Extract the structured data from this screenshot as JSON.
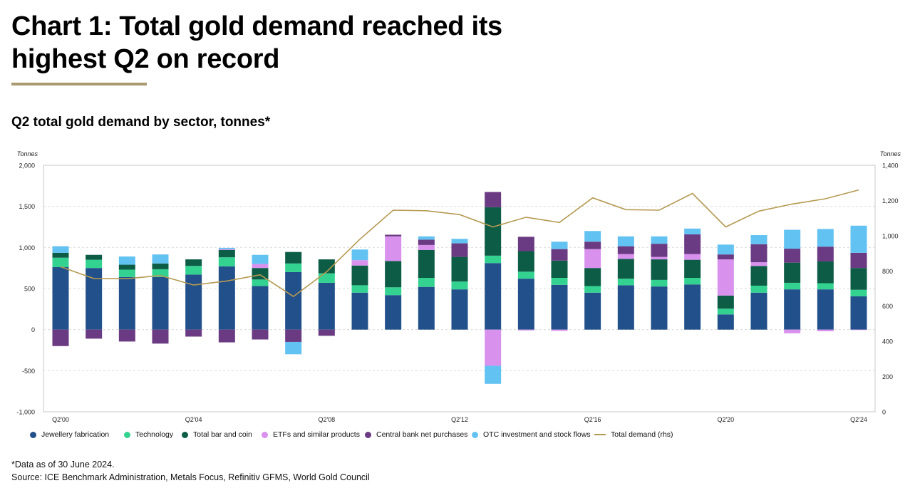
{
  "title_lines": [
    "Chart 1: Total gold demand reached its",
    "highest Q2 on record"
  ],
  "subtitle": "Q2 total gold demand by sector, tonnes*",
  "footnote": "*Data as of 30 June 2024.",
  "source": "Source: ICE Benchmark Administration, Metals Focus, Refinitiv GFMS, World Gold Council",
  "chart_data": {
    "type": "bar",
    "stacked": true,
    "categories": [
      "Q2'00",
      "Q2'01",
      "Q2'02",
      "Q2'03",
      "Q2'04",
      "Q2'05",
      "Q2'06",
      "Q2'07",
      "Q2'08",
      "Q2'09",
      "Q2'10",
      "Q2'11",
      "Q2'12",
      "Q2'13",
      "Q2'14",
      "Q2'15",
      "Q2'16",
      "Q2'17",
      "Q2'18",
      "Q2'19",
      "Q2'20",
      "Q2'21",
      "Q2'22",
      "Q2'23",
      "Q2'24"
    ],
    "x_tick_labels": [
      "Q2'00",
      "Q2'04",
      "Q2'08",
      "Q2'12",
      "Q2'16",
      "Q2'20",
      "Q2'24"
    ],
    "x_tick_indices": [
      0,
      4,
      8,
      12,
      16,
      20,
      24
    ],
    "left_axis": {
      "label": "Tonnes",
      "ylim": [
        -1000,
        2000
      ],
      "ticks": [
        -1000,
        -500,
        0,
        500,
        1000,
        1500,
        2000
      ],
      "tick_labels": [
        "-1,000",
        "-500",
        "0",
        "500",
        "1,000",
        "1,500",
        "2,000"
      ]
    },
    "right_axis": {
      "label": "Tonnes",
      "ylim": [
        0,
        1400
      ],
      "ticks": [
        0,
        200,
        400,
        600,
        800,
        1000,
        1200,
        1400
      ],
      "tick_labels": [
        "0",
        "200",
        "400",
        "600",
        "800",
        "1,000",
        "1,200",
        "1,400"
      ]
    },
    "grid": true,
    "legend_position": "bottom",
    "series": [
      {
        "name": "Jewellery fabrication",
        "color": "#22508a",
        "values": [
          760,
          750,
          640,
          640,
          670,
          770,
          530,
          700,
          570,
          450,
          420,
          520,
          490,
          810,
          620,
          545,
          450,
          540,
          525,
          550,
          185,
          450,
          490,
          490,
          405
        ]
      },
      {
        "name": "Technology",
        "color": "#34d291",
        "values": [
          115,
          100,
          90,
          95,
          105,
          110,
          80,
          105,
          115,
          90,
          95,
          110,
          95,
          90,
          85,
          85,
          80,
          80,
          80,
          80,
          70,
          85,
          80,
          75,
          80
        ]
      },
      {
        "name": "Total bar and coin",
        "color": "#0d5c46",
        "values": [
          60,
          60,
          60,
          70,
          80,
          90,
          140,
          140,
          170,
          240,
          320,
          340,
          300,
          590,
          250,
          210,
          220,
          240,
          250,
          220,
          160,
          240,
          245,
          265,
          265
        ]
      },
      {
        "name": "ETFs and similar products",
        "color": "#d991ee",
        "values": [
          0,
          0,
          0,
          0,
          0,
          10,
          50,
          0,
          0,
          65,
          300,
          60,
          0,
          -440,
          -10,
          -15,
          230,
          60,
          30,
          70,
          440,
          45,
          -45,
          -20,
          -5
        ]
      },
      {
        "name": "Central bank net purchases",
        "color": "#6a3a82",
        "values": [
          -200,
          -110,
          -145,
          -170,
          -85,
          -155,
          -120,
          -150,
          -75,
          0,
          20,
          65,
          165,
          185,
          175,
          140,
          90,
          95,
          160,
          240,
          60,
          220,
          170,
          180,
          185
        ]
      },
      {
        "name": "OTC investment and stock flows",
        "color": "#62c2f2",
        "values": [
          80,
          0,
          100,
          110,
          0,
          15,
          110,
          -150,
          0,
          130,
          0,
          40,
          55,
          -220,
          0,
          90,
          130,
          120,
          90,
          70,
          120,
          110,
          230,
          215,
          330
        ]
      },
      {
        "name": "Total demand (rhs)",
        "color": "#b59a52",
        "type": "line",
        "axis": "right",
        "values": [
          824,
          757,
          756,
          774,
          720,
          743,
          778,
          655,
          795,
          980,
          1145,
          1142,
          1120,
          1050,
          1105,
          1075,
          1215,
          1148,
          1145,
          1240,
          1050,
          1140,
          1180,
          1210,
          1260
        ]
      }
    ]
  }
}
